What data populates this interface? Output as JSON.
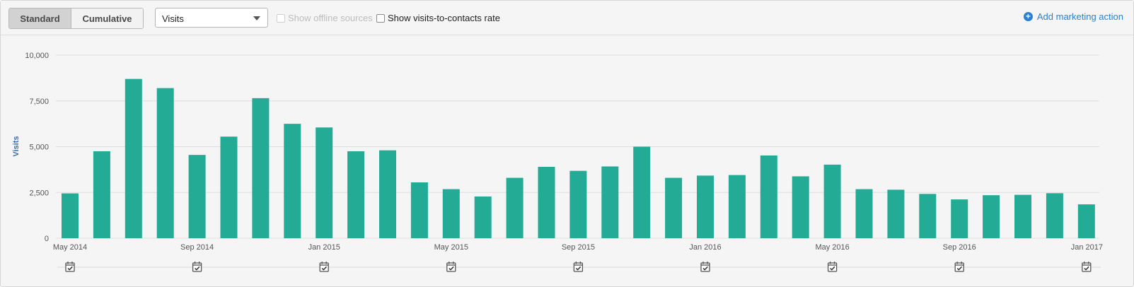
{
  "toolbar": {
    "toggle": {
      "standard": "Standard",
      "cumulative": "Cumulative",
      "selected": "Standard"
    },
    "metric_select": {
      "value": "Visits"
    },
    "offline_label": "Show offline sources",
    "rate_label": "Show visits-to-contacts rate",
    "add_action_label": "Add marketing action",
    "add_icon": "plus-circle-icon"
  },
  "chart_data": {
    "type": "bar",
    "ylabel": "Visits",
    "ylim": [
      0,
      10000
    ],
    "y_ticks": [
      0,
      2500,
      5000,
      7500,
      10000
    ],
    "y_tick_labels": [
      "0",
      "2,500",
      "5,000",
      "7,500",
      "10,000"
    ],
    "x_tick_labels": [
      "May 2014",
      "Sep 2014",
      "Jan 2015",
      "May 2015",
      "Sep 2015",
      "Jan 2016",
      "May 2016",
      "Sep 2016",
      "Jan 2017"
    ],
    "grid": true,
    "bar_color": "#24ab96",
    "categories": [
      "May 2014",
      "Jun 2014",
      "Jul 2014",
      "Aug 2014",
      "Sep 2014",
      "Oct 2014",
      "Nov 2014",
      "Dec 2014",
      "Jan 2015",
      "Feb 2015",
      "Mar 2015",
      "Apr 2015",
      "May 2015",
      "Jun 2015",
      "Jul 2015",
      "Aug 2015",
      "Sep 2015",
      "Oct 2015",
      "Nov 2015",
      "Dec 2015",
      "Jan 2016",
      "Feb 2016",
      "Mar 2016",
      "Apr 2016",
      "May 2016",
      "Jun 2016",
      "Jul 2016",
      "Aug 2016",
      "Sep 2016",
      "Oct 2016",
      "Nov 2016",
      "Dec 2016",
      "Jan 2017"
    ],
    "values": [
      2450,
      4750,
      8700,
      8200,
      4550,
      5550,
      7650,
      6250,
      6050,
      4750,
      4800,
      3050,
      2680,
      2280,
      3300,
      3900,
      3680,
      3920,
      5000,
      3300,
      3420,
      3450,
      4520,
      3380,
      4020,
      2680,
      2650,
      2420,
      2120,
      2350,
      2370,
      2460,
      1850
    ],
    "marketing_action_months": [
      "May 2014",
      "Sep 2014",
      "Jan 2015",
      "May 2015",
      "Sep 2015",
      "Jan 2016",
      "May 2016",
      "Sep 2016",
      "Jan 2017"
    ],
    "marker_icon": "calendar-check-icon"
  }
}
